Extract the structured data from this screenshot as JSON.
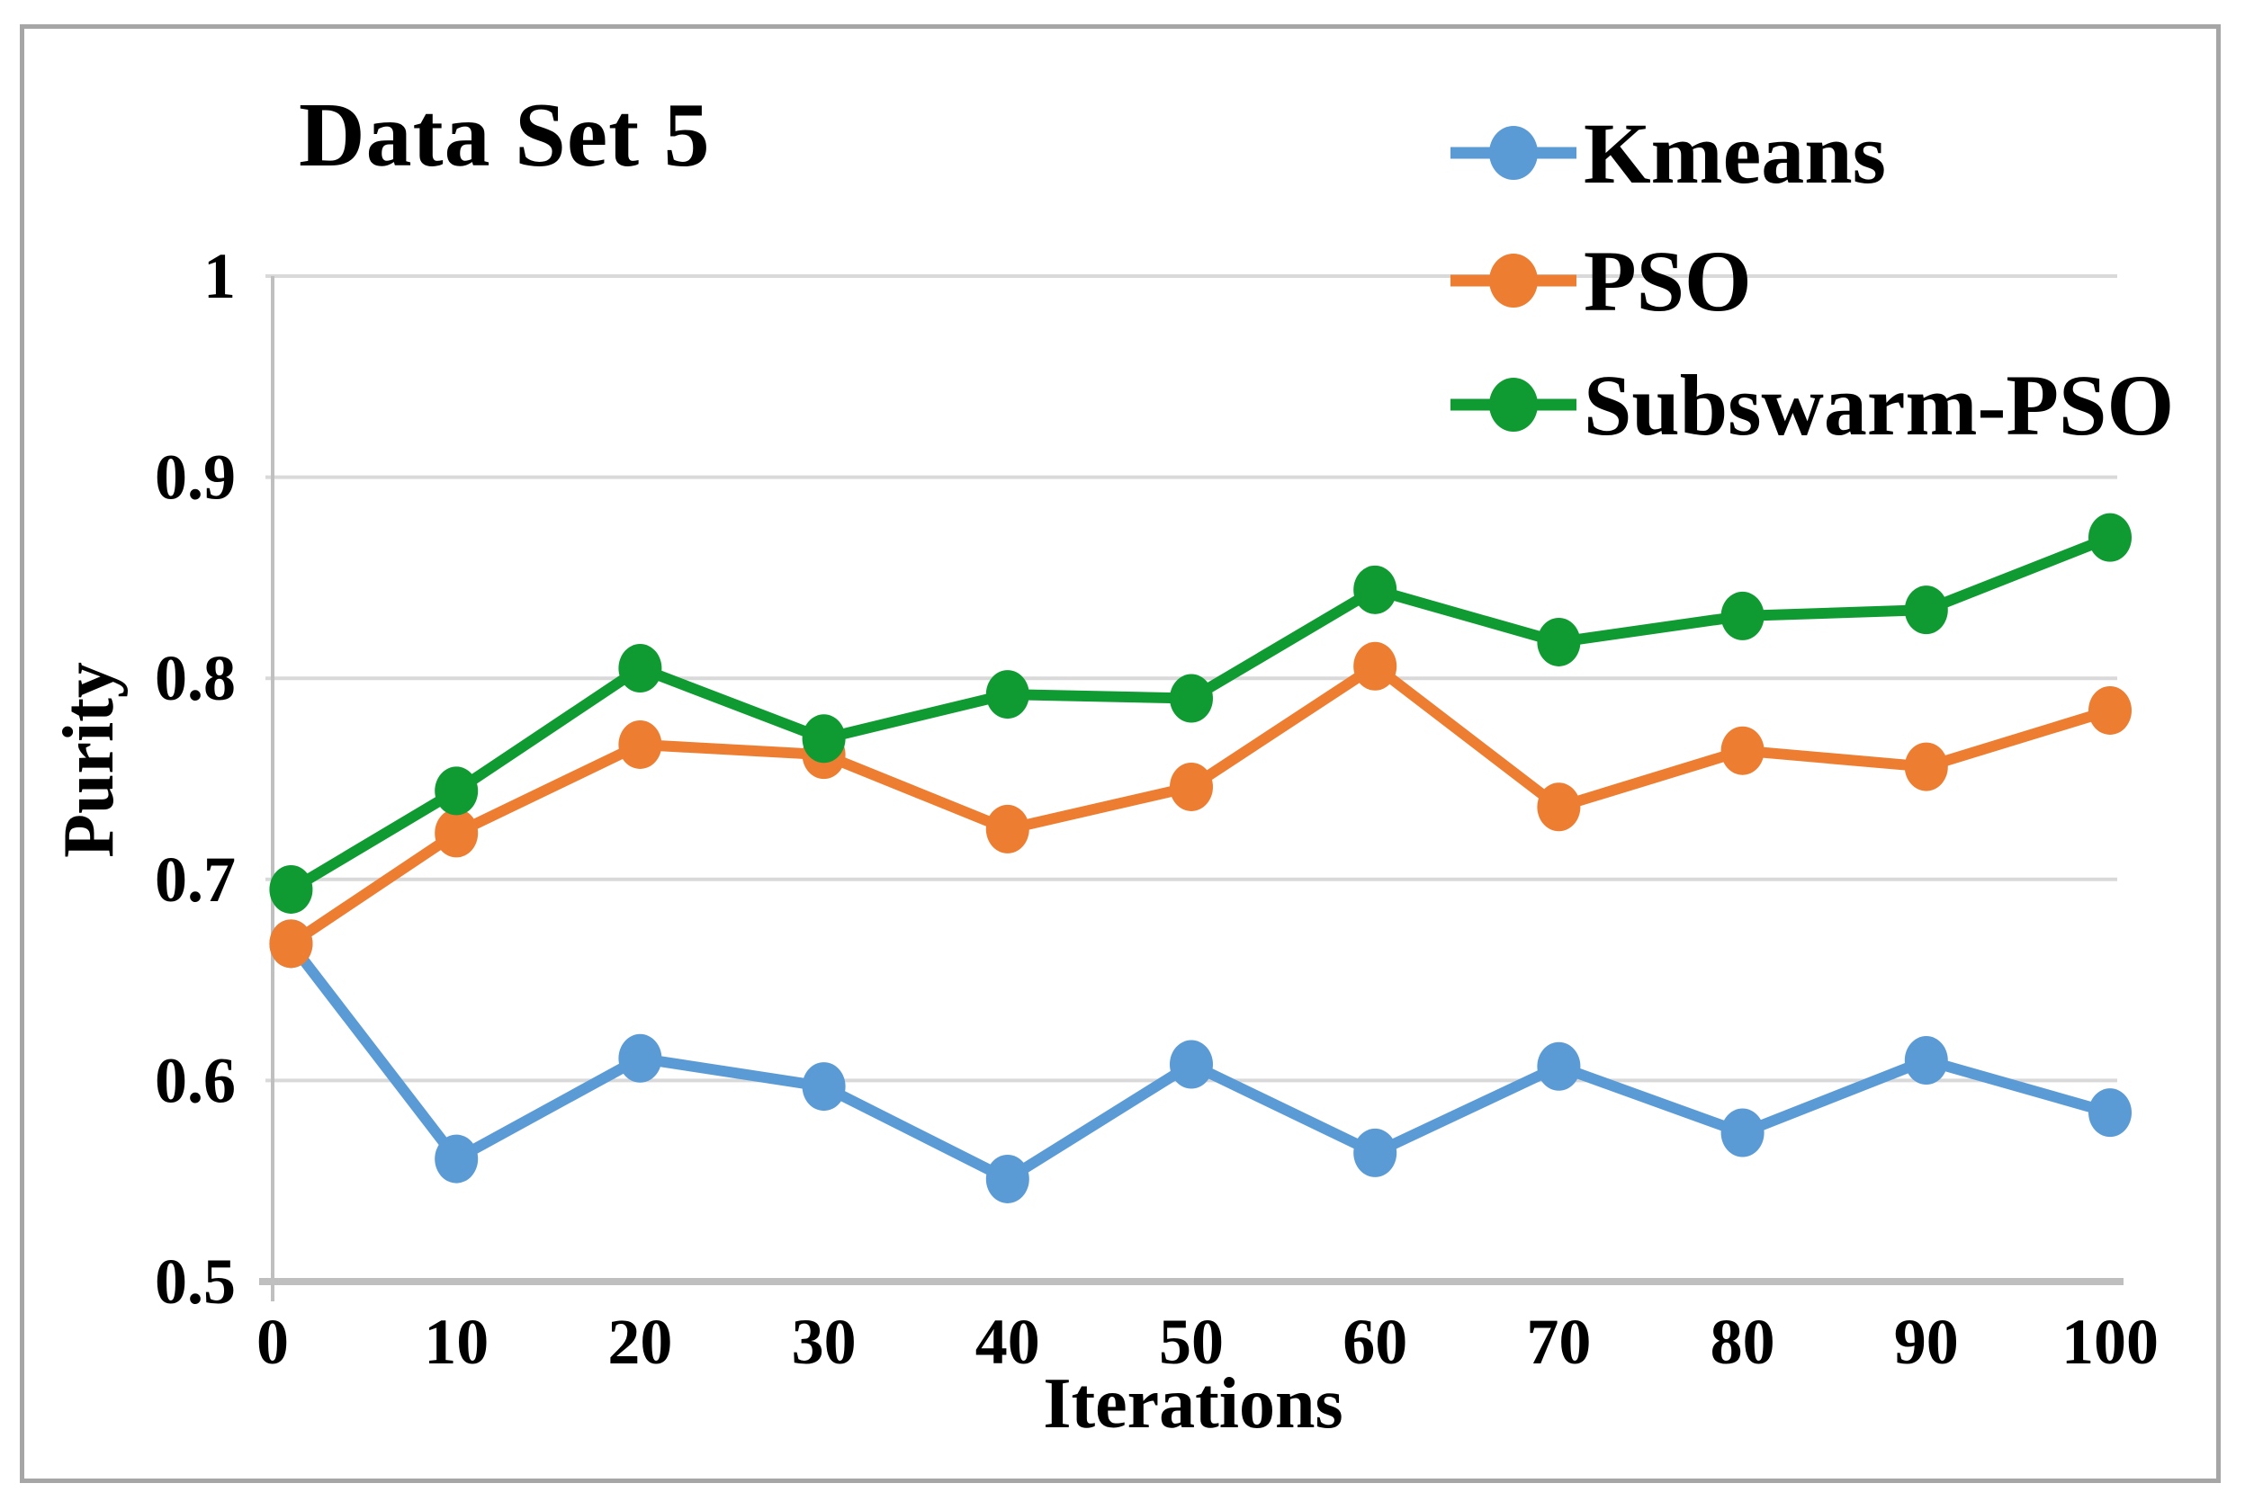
{
  "title": "Data Set 5",
  "axes": {
    "x_label": "Iterations",
    "y_label": "Purity",
    "y_tick_labels": [
      "1",
      "0.9",
      "0.8",
      "0.7",
      "0.6",
      "0.5"
    ],
    "x_tick_labels": [
      "0",
      "10",
      "20",
      "30",
      "40",
      "50",
      "60",
      "70",
      "80",
      "90",
      "100"
    ]
  },
  "legend": {
    "items": [
      "Kmeans",
      "PSO",
      "Subswarm-PSO"
    ]
  },
  "colors": {
    "kmeans": "#5B9BD5",
    "pso": "#ED7D31",
    "subswarm_pso": "#0F9B32",
    "gridline": "#D9D9D9",
    "axis": "#BFBFBF",
    "frame": "#A6A6A6",
    "text": "#000000"
  },
  "chart_data": {
    "type": "line",
    "title": "Data Set 5",
    "xlabel": "Iterations",
    "ylabel": "Purity",
    "x": [
      1,
      10,
      20,
      30,
      40,
      50,
      60,
      70,
      80,
      90,
      100
    ],
    "series": [
      {
        "name": "Kmeans",
        "color": "#5B9BD5",
        "values": [
          0.668,
          0.561,
          0.611,
          0.597,
          0.551,
          0.608,
          0.564,
          0.607,
          0.574,
          0.61,
          0.584
        ]
      },
      {
        "name": "PSO",
        "color": "#ED7D31",
        "values": [
          0.668,
          0.723,
          0.767,
          0.762,
          0.725,
          0.746,
          0.806,
          0.736,
          0.764,
          0.756,
          0.784
        ]
      },
      {
        "name": "Subswarm-PSO",
        "color": "#0F9B32",
        "values": [
          0.695,
          0.744,
          0.805,
          0.77,
          0.792,
          0.79,
          0.844,
          0.818,
          0.831,
          0.834,
          0.87
        ]
      }
    ],
    "xlim": [
      0,
      100
    ],
    "ylim": [
      0.5,
      1.0
    ],
    "x_ticks": [
      0,
      10,
      20,
      30,
      40,
      50,
      60,
      70,
      80,
      90,
      100
    ],
    "y_ticks": [
      1.0,
      0.9,
      0.8,
      0.7,
      0.6,
      0.5
    ],
    "grid": "horizontal",
    "legend_position": "top-right"
  }
}
